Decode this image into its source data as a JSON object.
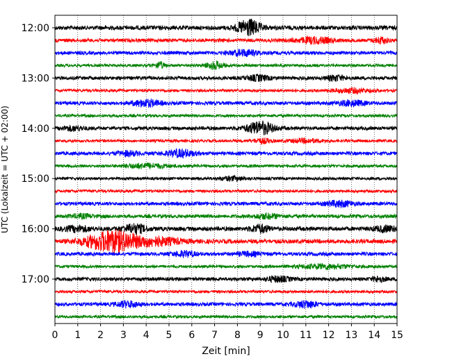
{
  "chart_data": {
    "type": "line",
    "title": "",
    "xlabel": "Zeit  [min]",
    "ylabel": "UTC (Lokalzeit = UTC + 02:00)",
    "xlim": [
      0,
      15
    ],
    "x_ticks": [
      "0",
      "1",
      "2",
      "3",
      "4",
      "5",
      "6",
      "7",
      "8",
      "9",
      "10",
      "11",
      "12",
      "13",
      "14",
      "15"
    ],
    "y_ticks": [
      {
        "label": "12:00",
        "trace": 0
      },
      {
        "label": "13:00",
        "trace": 4
      },
      {
        "label": "14:00",
        "trace": 8
      },
      {
        "label": "15:00",
        "trace": 12
      },
      {
        "label": "16:00",
        "trace": 16
      },
      {
        "label": "17:00",
        "trace": 20
      }
    ],
    "trace_interval_min": 15,
    "grid": "vertical dotted at every minute",
    "color_cycle": [
      "#000000",
      "#ff0000",
      "#0000ff",
      "#008000"
    ],
    "traces": [
      {
        "start": "12:00",
        "amp": 6,
        "events": [
          {
            "t": 8.5,
            "a": 22,
            "w": 0.5
          }
        ]
      },
      {
        "start": "12:15",
        "amp": 5,
        "events": [
          {
            "t": 11.4,
            "a": 8,
            "w": 0.8
          },
          {
            "t": 14.3,
            "a": 8,
            "w": 0.3
          }
        ]
      },
      {
        "start": "12:30",
        "amp": 5,
        "events": [
          {
            "t": 8.3,
            "a": 8,
            "w": 0.6
          }
        ]
      },
      {
        "start": "12:45",
        "amp": 4,
        "events": [
          {
            "t": 4.6,
            "a": 9,
            "w": 0.2
          },
          {
            "t": 7.0,
            "a": 10,
            "w": 0.4
          }
        ]
      },
      {
        "start": "13:00",
        "amp": 5,
        "events": [
          {
            "t": 8.9,
            "a": 7,
            "w": 0.5
          },
          {
            "t": 12.3,
            "a": 7,
            "w": 0.4
          }
        ]
      },
      {
        "start": "13:15",
        "amp": 4,
        "events": [
          {
            "t": 13.0,
            "a": 6,
            "w": 0.8
          }
        ]
      },
      {
        "start": "13:30",
        "amp": 5,
        "events": [
          {
            "t": 4.0,
            "a": 9,
            "w": 0.6
          },
          {
            "t": 13.0,
            "a": 7,
            "w": 0.6
          }
        ]
      },
      {
        "start": "13:45",
        "amp": 4,
        "events": []
      },
      {
        "start": "14:00",
        "amp": 5,
        "events": [
          {
            "t": 9.0,
            "a": 18,
            "w": 0.6
          },
          {
            "t": 0.8,
            "a": 6,
            "w": 0.5
          }
        ]
      },
      {
        "start": "14:15",
        "amp": 4,
        "events": [
          {
            "t": 9.1,
            "a": 6,
            "w": 0.4
          },
          {
            "t": 11.0,
            "a": 5,
            "w": 0.7
          }
        ]
      },
      {
        "start": "14:30",
        "amp": 5,
        "events": [
          {
            "t": 5.5,
            "a": 10,
            "w": 0.6
          },
          {
            "t": 3.2,
            "a": 6,
            "w": 0.5
          }
        ]
      },
      {
        "start": "14:45",
        "amp": 4,
        "events": [
          {
            "t": 4.0,
            "a": 6,
            "w": 1.0
          }
        ]
      },
      {
        "start": "15:00",
        "amp": 4,
        "events": [
          {
            "t": 7.8,
            "a": 5,
            "w": 0.6
          }
        ]
      },
      {
        "start": "15:15",
        "amp": 4,
        "events": []
      },
      {
        "start": "15:30",
        "amp": 5,
        "events": [
          {
            "t": 12.5,
            "a": 8,
            "w": 0.6
          }
        ]
      },
      {
        "start": "15:45",
        "amp": 5,
        "events": [
          {
            "t": 9.3,
            "a": 6,
            "w": 0.6
          },
          {
            "t": 1.2,
            "a": 5,
            "w": 0.5
          }
        ]
      },
      {
        "start": "16:00",
        "amp": 6,
        "events": [
          {
            "t": 3.5,
            "a": 12,
            "w": 0.5
          },
          {
            "t": 9.0,
            "a": 10,
            "w": 0.4
          },
          {
            "t": 1.0,
            "a": 7,
            "w": 0.6
          },
          {
            "t": 14.5,
            "a": 7,
            "w": 0.5
          }
        ]
      },
      {
        "start": "16:15",
        "amp": 6,
        "events": [
          {
            "t": 2.5,
            "a": 30,
            "w": 1.1
          },
          {
            "t": 4.5,
            "a": 10,
            "w": 1.0
          }
        ]
      },
      {
        "start": "16:30",
        "amp": 5,
        "events": [
          {
            "t": 5.7,
            "a": 7,
            "w": 0.5
          },
          {
            "t": 8.5,
            "a": 5,
            "w": 0.5
          }
        ]
      },
      {
        "start": "16:45",
        "amp": 4,
        "events": [
          {
            "t": 11.8,
            "a": 6,
            "w": 1.2
          }
        ]
      },
      {
        "start": "17:00",
        "amp": 5,
        "events": [
          {
            "t": 9.8,
            "a": 7,
            "w": 0.5
          },
          {
            "t": 14.2,
            "a": 7,
            "w": 0.3
          }
        ]
      },
      {
        "start": "17:15",
        "amp": 4,
        "events": []
      },
      {
        "start": "17:30",
        "amp": 5,
        "events": [
          {
            "t": 3.2,
            "a": 8,
            "w": 0.5
          },
          {
            "t": 11.0,
            "a": 9,
            "w": 0.5
          }
        ]
      },
      {
        "start": "17:45",
        "amp": 4,
        "events": []
      }
    ]
  }
}
